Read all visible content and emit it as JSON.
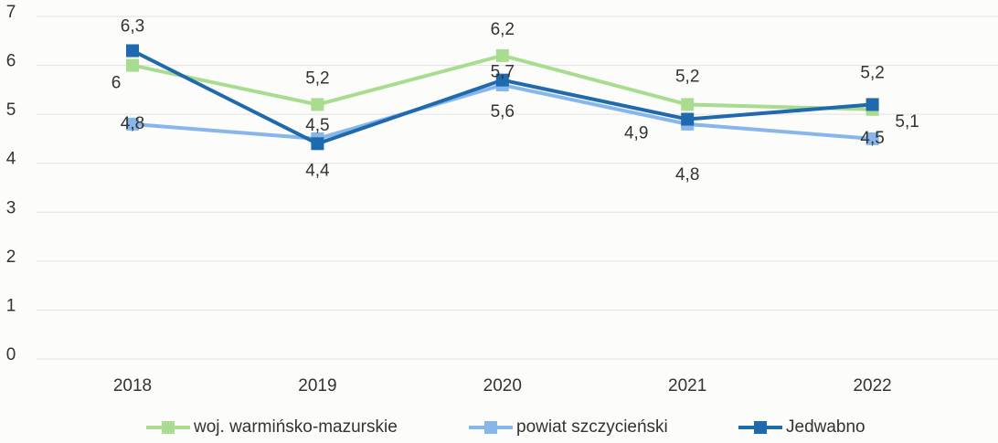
{
  "chart_data": {
    "type": "line",
    "categories": [
      "2018",
      "2019",
      "2020",
      "2021",
      "2022"
    ],
    "ylim": [
      0,
      7
    ],
    "yticks": [
      0,
      1,
      2,
      3,
      4,
      5,
      6,
      7
    ],
    "grid": true,
    "legend": "bottom",
    "series": [
      {
        "name": "woj. warmińsko-mazurskie",
        "color": "#a9dc8e",
        "values": [
          6,
          5.2,
          6.2,
          5.2,
          5.1
        ],
        "value_labels": [
          "6",
          "5,2",
          "6,2",
          "5,2",
          "5,1"
        ]
      },
      {
        "name": "powiat szczycieński",
        "color": "#86b6ea",
        "values": [
          4.8,
          4.5,
          5.6,
          4.8,
          4.5
        ],
        "value_labels": [
          "4,8",
          "4,5",
          "5,6",
          "4,8",
          "4,5"
        ]
      },
      {
        "name": "Jedwabno",
        "color": "#1f69ad",
        "values": [
          6.3,
          4.4,
          5.7,
          4.9,
          5.2
        ],
        "value_labels": [
          "6,3",
          "4,4",
          "5,7",
          "4,9",
          "5,2"
        ]
      }
    ]
  }
}
